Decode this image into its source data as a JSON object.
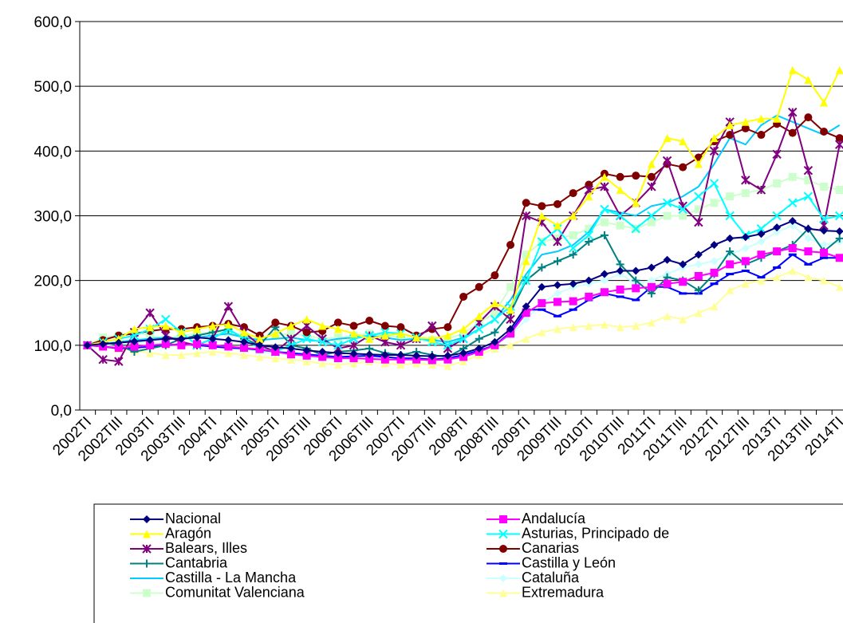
{
  "chart_data": {
    "type": "line",
    "categories": [
      "2002TI",
      null,
      "2002TIII",
      null,
      "2003TI",
      null,
      "2003TIII",
      null,
      "2004TI",
      null,
      "2004TIII",
      null,
      "2005TI",
      null,
      "2005TIII",
      null,
      "2006TI",
      null,
      "2006TIII",
      null,
      "2007TI",
      null,
      "2007TIII",
      null,
      "2008TI",
      null,
      "2008TIII",
      null,
      "2009TI",
      null,
      "2009TIII",
      null,
      "2010TI",
      null,
      "2010TIII",
      null,
      "2011TI",
      null,
      "2011TIII",
      null,
      "2012TI",
      null,
      "2012TIII",
      null,
      "2013TI",
      null,
      "2013TIII",
      null,
      "2014TI"
    ],
    "ylim": [
      0,
      600
    ],
    "yticks": [
      {
        "value": 0,
        "label": "0,0"
      },
      {
        "value": 100,
        "label": "100,0"
      },
      {
        "value": 200,
        "label": "200,0"
      },
      {
        "value": 300,
        "label": "300,0"
      },
      {
        "value": 400,
        "label": "400,0"
      },
      {
        "value": 500,
        "label": "500,0"
      },
      {
        "value": 600,
        "label": "600,0"
      }
    ],
    "grid": true,
    "series": [
      {
        "name": "Nacional",
        "color": "#000080",
        "marker": "diamond",
        "values": [
          100,
          102,
          104,
          106,
          108,
          110,
          110,
          112,
          110,
          108,
          105,
          100,
          97,
          95,
          92,
          90,
          88,
          87,
          86,
          85,
          85,
          84,
          83,
          84,
          88,
          95,
          105,
          125,
          160,
          190,
          193,
          195,
          200,
          210,
          215,
          215,
          220,
          232,
          225,
          240,
          255,
          265,
          267,
          272,
          282,
          292,
          280,
          277,
          276
        ]
      },
      {
        "name": "Andalucía",
        "color": "#ff00ff",
        "marker": "square",
        "values": [
          100,
          98,
          96,
          98,
          100,
          102,
          100,
          102,
          100,
          98,
          96,
          94,
          90,
          86,
          84,
          82,
          80,
          80,
          79,
          78,
          78,
          78,
          77,
          78,
          82,
          90,
          100,
          118,
          150,
          165,
          167,
          168,
          175,
          182,
          186,
          188,
          190,
          195,
          198,
          207,
          212,
          225,
          230,
          240,
          245,
          250,
          245,
          243,
          235
        ]
      },
      {
        "name": "Aragón",
        "color": "#ffff00",
        "marker": "triangle",
        "values": [
          100,
          105,
          110,
          125,
          128,
          130,
          120,
          125,
          130,
          132,
          120,
          110,
          118,
          130,
          140,
          130,
          125,
          118,
          110,
          115,
          118,
          112,
          110,
          115,
          125,
          145,
          165,
          155,
          230,
          300,
          285,
          300,
          330,
          360,
          340,
          320,
          380,
          420,
          415,
          380,
          420,
          440,
          445,
          450,
          450,
          525,
          510,
          475,
          525
        ]
      },
      {
        "name": "Asturias, Principado de",
        "color": "#00ffff",
        "marker": "x",
        "values": [
          100,
          105,
          110,
          115,
          125,
          140,
          120,
          100,
          110,
          125,
          110,
          95,
          90,
          100,
          110,
          105,
          100,
          110,
          115,
          120,
          118,
          112,
          105,
          100,
          110,
          125,
          140,
          160,
          200,
          260,
          280,
          250,
          270,
          310,
          300,
          280,
          300,
          320,
          310,
          330,
          350,
          300,
          270,
          280,
          300,
          320,
          330,
          295,
          300
        ]
      },
      {
        "name": "Balears, Illes",
        "color": "#800080",
        "marker": "asterisk",
        "values": [
          100,
          78,
          75,
          120,
          150,
          115,
          105,
          100,
          110,
          160,
          120,
          100,
          90,
          110,
          130,
          110,
          95,
          100,
          115,
          105,
          100,
          110,
          130,
          95,
          110,
          135,
          160,
          140,
          300,
          290,
          260,
          300,
          340,
          345,
          300,
          320,
          345,
          385,
          315,
          290,
          400,
          445,
          355,
          340,
          395,
          460,
          370,
          285,
          410
        ]
      },
      {
        "name": "Canarias",
        "color": "#800000",
        "marker": "circle",
        "values": [
          100,
          108,
          115,
          118,
          122,
          125,
          125,
          128,
          130,
          133,
          128,
          115,
          135,
          130,
          120,
          122,
          135,
          130,
          138,
          130,
          128,
          115,
          125,
          128,
          175,
          190,
          208,
          255,
          320,
          315,
          318,
          335,
          348,
          365,
          360,
          362,
          360,
          380,
          375,
          390,
          415,
          425,
          435,
          425,
          442,
          428,
          452,
          430,
          420
        ]
      },
      {
        "name": "Cantabria",
        "color": "#008080",
        "marker": "plus",
        "values": [
          100,
          105,
          100,
          90,
          95,
          100,
          110,
          115,
          120,
          125,
          110,
          100,
          128,
          100,
          95,
          85,
          90,
          92,
          95,
          88,
          85,
          90,
          85,
          82,
          95,
          110,
          120,
          150,
          200,
          220,
          230,
          240,
          260,
          270,
          225,
          200,
          180,
          205,
          200,
          185,
          210,
          245,
          225,
          235,
          245,
          255,
          280,
          245,
          265
        ]
      },
      {
        "name": "Castilla y León",
        "color": "#0000ff",
        "marker": "dash",
        "values": [
          100,
          98,
          95,
          96,
          98,
          100,
          102,
          100,
          98,
          96,
          95,
          93,
          90,
          88,
          86,
          84,
          82,
          83,
          84,
          82,
          80,
          80,
          78,
          80,
          85,
          92,
          100,
          120,
          155,
          155,
          145,
          155,
          170,
          180,
          175,
          170,
          190,
          190,
          180,
          180,
          195,
          210,
          215,
          205,
          220,
          240,
          225,
          235,
          235
        ]
      },
      {
        "name": "Castilla - La Mancha",
        "color": "#00ccff",
        "marker": "none",
        "values": [
          100,
          102,
          105,
          108,
          110,
          112,
          110,
          112,
          115,
          118,
          112,
          108,
          110,
          112,
          108,
          106,
          110,
          112,
          115,
          112,
          108,
          110,
          108,
          105,
          112,
          125,
          140,
          170,
          210,
          240,
          245,
          255,
          275,
          310,
          305,
          300,
          315,
          320,
          330,
          345,
          380,
          420,
          410,
          440,
          455,
          445,
          435,
          425,
          440
        ]
      },
      {
        "name": "Cataluña",
        "color": "#ccffff",
        "marker": "diamond",
        "values": [
          100,
          100,
          102,
          104,
          104,
          103,
          100,
          100,
          98,
          96,
          95,
          90,
          88,
          85,
          82,
          80,
          78,
          80,
          82,
          80,
          78,
          80,
          78,
          80,
          85,
          92,
          100,
          115,
          140,
          165,
          180,
          190,
          195,
          200,
          210,
          195,
          200,
          210,
          220,
          225,
          230,
          240,
          250,
          260,
          275,
          285,
          265,
          255,
          260
        ]
      },
      {
        "name": "Comunitat Valenciana",
        "color": "#ccffcc",
        "marker": "square",
        "values": [
          100,
          112,
          115,
          120,
          115,
          110,
          115,
          118,
          120,
          120,
          115,
          112,
          115,
          118,
          115,
          110,
          112,
          115,
          118,
          115,
          112,
          110,
          108,
          110,
          118,
          135,
          150,
          190,
          240,
          260,
          265,
          270,
          280,
          290,
          285,
          280,
          290,
          300,
          300,
          310,
          320,
          330,
          335,
          340,
          350,
          360,
          355,
          345,
          340
        ]
      },
      {
        "name": "Extremadura",
        "color": "#ffff99",
        "marker": "triangle",
        "values": [
          100,
          98,
          95,
          92,
          88,
          85,
          85,
          88,
          90,
          88,
          85,
          82,
          80,
          78,
          75,
          72,
          70,
          72,
          75,
          72,
          70,
          72,
          70,
          68,
          75,
          85,
          95,
          100,
          110,
          120,
          125,
          128,
          130,
          132,
          128,
          130,
          135,
          145,
          140,
          150,
          160,
          185,
          195,
          200,
          205,
          215,
          205,
          200,
          190
        ]
      }
    ]
  }
}
